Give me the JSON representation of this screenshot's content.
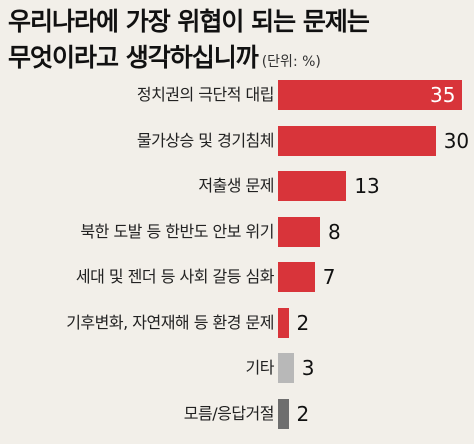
{
  "chart_data": {
    "type": "bar",
    "orientation": "horizontal",
    "title_line1": "우리나라에 가장 위협이 되는 문제는",
    "title_line2": "무엇이라고 생각하십니까",
    "unit": "(단위: %)",
    "categories": [
      "정치권의 극단적 대립",
      "물가상승 및 경기침체",
      "저출생 문제",
      "북한 도발 등 한반도 안보 위기",
      "세대 및 젠더 등 사회 갈등 심화",
      "기후변화, 자연재해 등 환경 문제",
      "기타",
      "모름/응답거절"
    ],
    "values": [
      35,
      30,
      13,
      8,
      7,
      2,
      3,
      2
    ],
    "value_labels": [
      "35",
      "30",
      "13",
      "8",
      "7",
      "2",
      "3",
      "2"
    ],
    "colors": [
      "#d8343a",
      "#d8343a",
      "#d8343a",
      "#d8343a",
      "#d8343a",
      "#d8343a",
      "#b8b8b8",
      "#6e6e6e"
    ],
    "xlim": [
      0,
      35
    ],
    "grid": false
  }
}
